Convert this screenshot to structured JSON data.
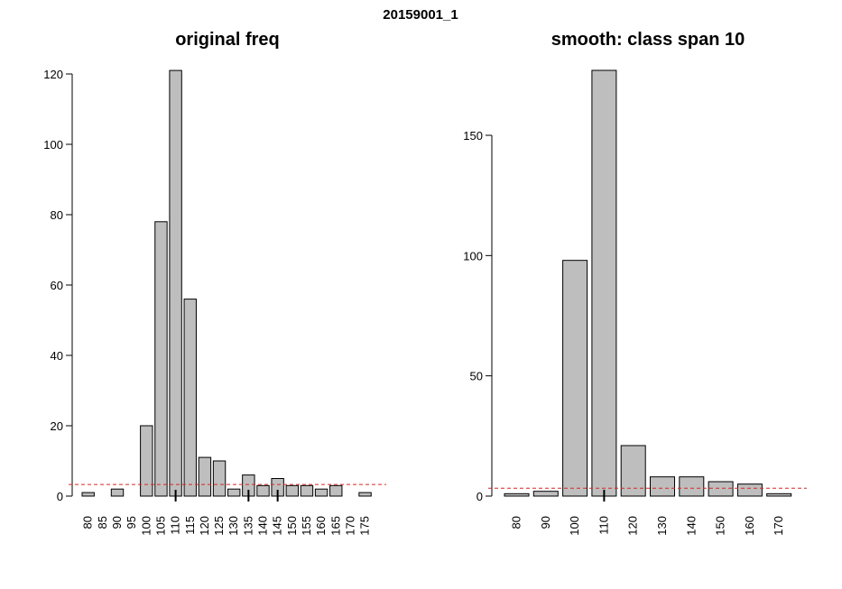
{
  "figure": {
    "title": "20159001_1"
  },
  "chart_data": [
    {
      "type": "bar",
      "title": "original freq",
      "xlabel": "",
      "ylabel": "",
      "categories": [
        "80",
        "85",
        "90",
        "95",
        "100",
        "105",
        "110",
        "115",
        "120",
        "125",
        "130",
        "135",
        "140",
        "145",
        "150",
        "155",
        "160",
        "165",
        "170",
        "175"
      ],
      "values": [
        1,
        0,
        2,
        0,
        20,
        78,
        121,
        56,
        11,
        10,
        2,
        6,
        3,
        5,
        3,
        3,
        2,
        3,
        0,
        1
      ],
      "ylim": [
        0,
        120
      ],
      "yticks": [
        0,
        20,
        40,
        60,
        80,
        100,
        120
      ],
      "reference_line": {
        "y": 3.3,
        "style": "dashed",
        "color": "#d62728"
      },
      "markers": [
        "110",
        "135",
        "145"
      ],
      "grid": false,
      "bar_color": "#bebebe"
    },
    {
      "type": "bar",
      "title": "smooth: class span 10",
      "xlabel": "",
      "ylabel": "",
      "categories": [
        "80",
        "90",
        "100",
        "110",
        "120",
        "130",
        "140",
        "150",
        "160",
        "170"
      ],
      "values": [
        1,
        2,
        98,
        177,
        21,
        8,
        8,
        6,
        5,
        1
      ],
      "ylim": [
        0,
        177
      ],
      "yticks": [
        0,
        50,
        100,
        150
      ],
      "reference_line": {
        "y": 3.3,
        "style": "dashed",
        "color": "#d62728"
      },
      "markers": [
        "110"
      ],
      "grid": false,
      "bar_color": "#bebebe"
    }
  ]
}
